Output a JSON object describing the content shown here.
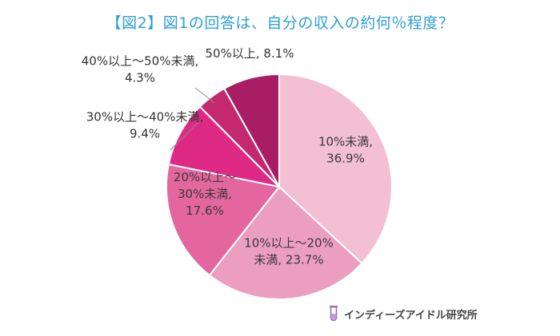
{
  "chart_data": {
    "type": "pie",
    "title": "【図2】図1の回答は、自分の収入の約何％程度？",
    "slices": [
      {
        "label_lines": [
          "10%未満,",
          "36.9%"
        ],
        "category": "10%未満",
        "value": 36.9,
        "color": "#f2bfd3"
      },
      {
        "label_lines": [
          "10%以上～20%",
          "未満, 23.7%"
        ],
        "category": "10%以上～20%未満",
        "value": 23.7,
        "color": "#ec9ec0"
      },
      {
        "label_lines": [
          "20%以上～",
          "30%未満,",
          "17.6%"
        ],
        "category": "20%以上～30%未満",
        "value": 17.6,
        "color": "#e3669f"
      },
      {
        "label_lines": [
          "30%以上～40%未満,",
          "9.4%"
        ],
        "category": "30%以上～40%未満",
        "value": 9.4,
        "color": "#de2a84"
      },
      {
        "label_lines": [
          "40%以上～50%未満,",
          "4.3%"
        ],
        "category": "40%以上～50%未満",
        "value": 4.3,
        "color": "#c4286f"
      },
      {
        "label_lines": [
          "50%以上, 8.1%"
        ],
        "category": "50%以上",
        "value": 8.1,
        "color": "#a81d63"
      }
    ],
    "start_angle_deg": 0,
    "direction": "clockwise"
  },
  "source": {
    "text": "インディーズアイドル研究所",
    "icon": "test-tube-icon",
    "icon_color": "#9b6fb3"
  }
}
